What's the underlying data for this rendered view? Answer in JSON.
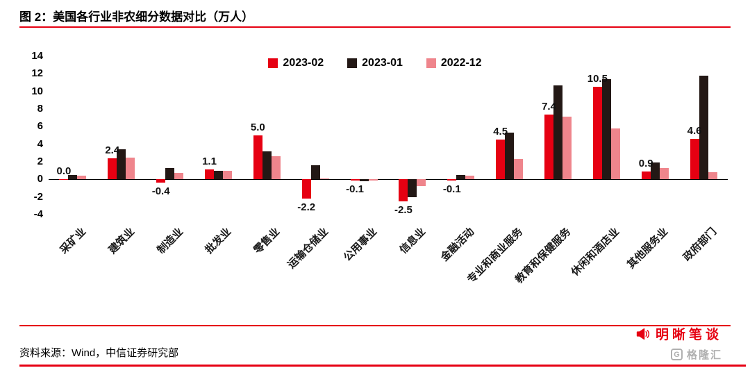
{
  "header": {
    "title": "图 2：美国各行业非农细分数据对比（万人）"
  },
  "chart_data": {
    "type": "bar",
    "title": "美国各行业非农细分数据对比（万人）",
    "categories": [
      "采矿业",
      "建筑业",
      "制造业",
      "批发业",
      "零售业",
      "运输仓储业",
      "公用事业",
      "信息业",
      "金融活动",
      "专业和商业服务",
      "教育和保健服务",
      "休闲和酒店业",
      "其他服务业",
      "政府部门"
    ],
    "series": [
      {
        "name": "2023-02",
        "color": "#e60012",
        "values": [
          0.0,
          2.4,
          -0.4,
          1.1,
          5.0,
          -2.2,
          -0.1,
          -2.5,
          -0.1,
          4.5,
          7.4,
          10.5,
          0.9,
          4.6
        ]
      },
      {
        "name": "2023-01",
        "color": "#231815",
        "values": [
          0.5,
          3.4,
          1.3,
          1.0,
          3.2,
          1.6,
          -0.2,
          -2.0,
          0.5,
          5.3,
          10.7,
          11.4,
          1.9,
          11.8
        ]
      },
      {
        "name": "2022-12",
        "color": "#ef858c",
        "values": [
          0.4,
          2.5,
          0.7,
          1.0,
          2.6,
          0.1,
          -0.1,
          -0.8,
          0.4,
          2.3,
          7.1,
          5.8,
          1.3,
          0.8
        ]
      }
    ],
    "data_labels": [
      "0.0",
      "2.4",
      "-0.4",
      "1.1",
      "5.0",
      "-2.2",
      "-0.1",
      "-2.5",
      "-0.1",
      "4.5",
      "7.4",
      "10.5",
      "0.9",
      "4.6"
    ],
    "ylim": [
      -4,
      14
    ],
    "yticks": [
      14,
      12,
      10,
      8,
      6,
      4,
      2,
      0,
      -2,
      -4
    ],
    "grid": false,
    "legend_position": "top-center",
    "xlabel": "",
    "ylabel": ""
  },
  "footer": {
    "source": "资料来源：Wind，中信证券研究部",
    "brand": "明晰笔谈",
    "watermark": "格隆汇"
  },
  "colors": {
    "accent": "#e60012",
    "dark_series": "#231815",
    "pink_series": "#ef858c",
    "watermark_gray": "#b0b0b0"
  }
}
